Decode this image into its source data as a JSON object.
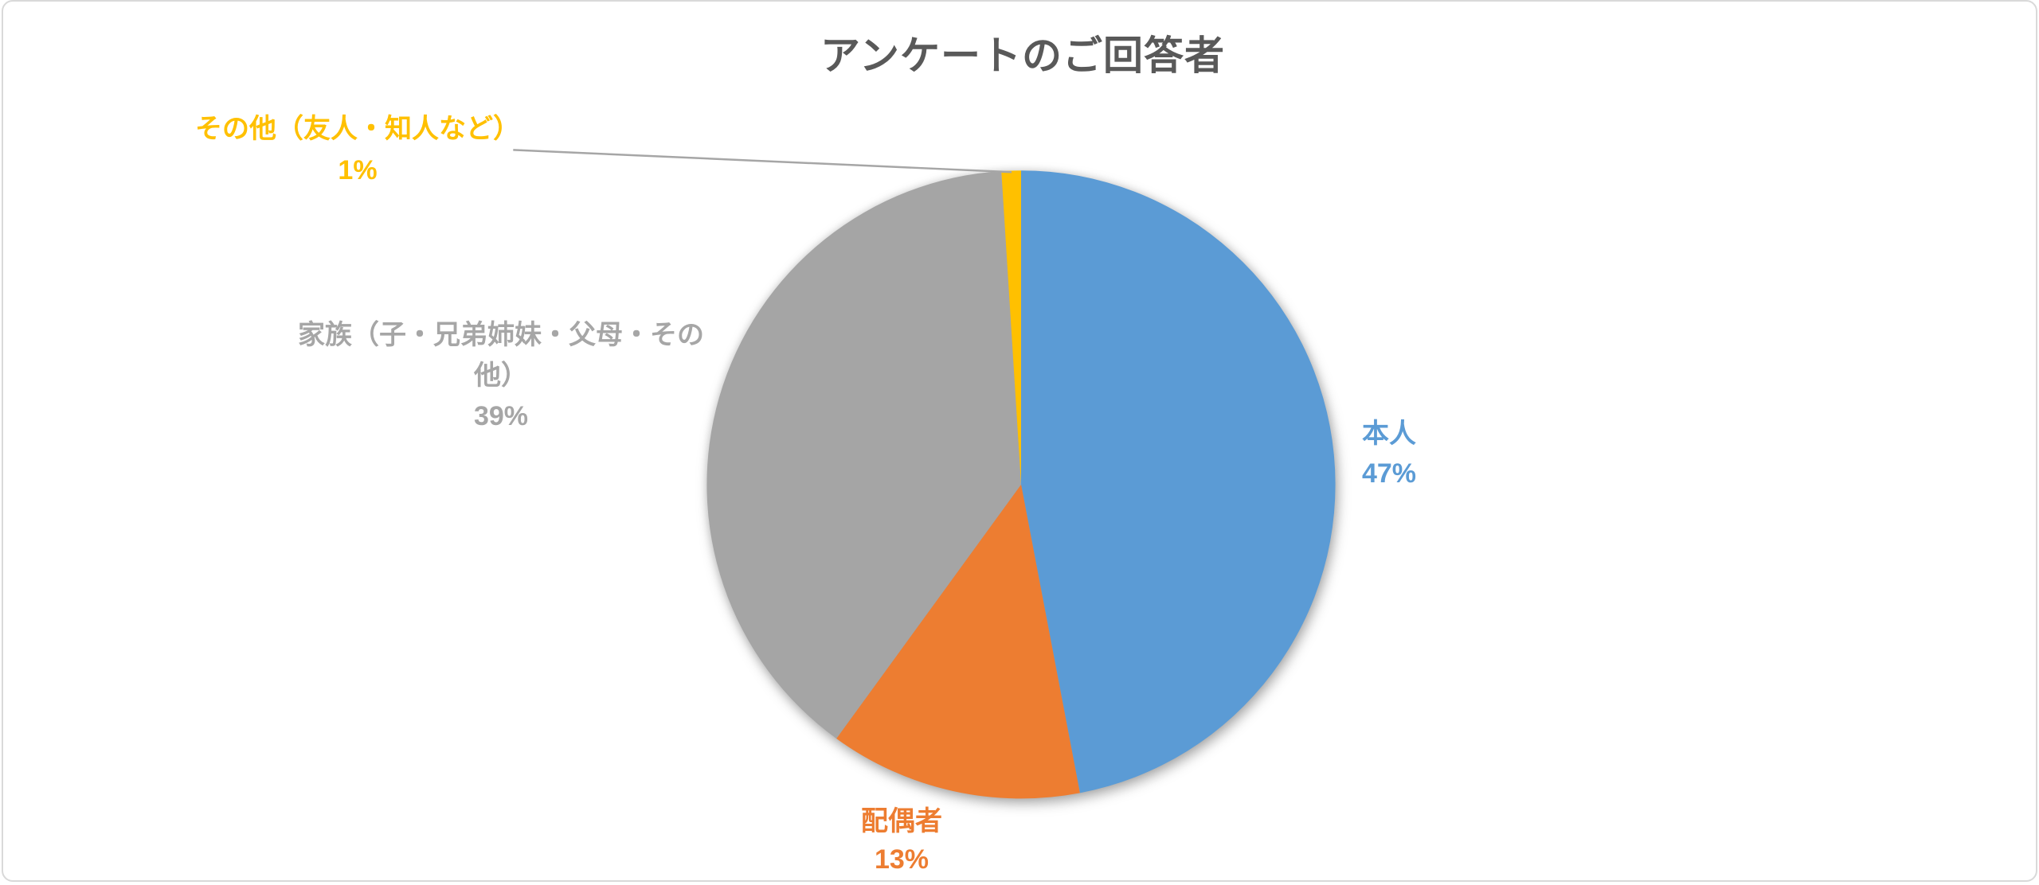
{
  "frame": {
    "background_color": "#ffffff",
    "border_color": "#d9d9d9"
  },
  "chart_data": {
    "type": "pie",
    "title": "アンケートのご回答者",
    "title_color": "#595959",
    "legend": "none",
    "start_angle_deg": 0,
    "direction": "clockwise",
    "data_label_style": "outside, category name + percentage",
    "leader_line_color": "#A6A6A6",
    "slices": [
      {
        "name": "honnin",
        "label": "本人",
        "value_pct": 47,
        "pct_text": "47%",
        "color": "#5B9BD5"
      },
      {
        "name": "haigusha",
        "label": "配偶者",
        "value_pct": 13,
        "pct_text": "13%",
        "color": "#ED7D31"
      },
      {
        "name": "kazoku",
        "label": "家族（子・兄弟姉妹・父母・その他）",
        "label_lines": [
          "家族（子・兄弟姉妹・父母・その",
          "他）"
        ],
        "value_pct": 39,
        "pct_text": "39%",
        "color": "#A5A5A5",
        "label_color": "#A6A6A6"
      },
      {
        "name": "sonota",
        "label": "その他（友人・知人など）",
        "value_pct": 1,
        "pct_text": "1%",
        "color": "#FFC000"
      }
    ]
  }
}
